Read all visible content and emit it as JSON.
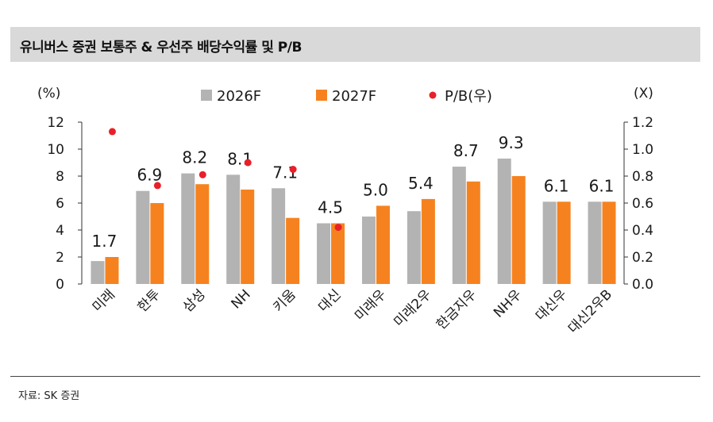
{
  "title": "유니버스 증권 보통주 & 우선주 배당수익률 및 P/B",
  "source": "자료: SK 증권",
  "colors": {
    "series_2026": "#b3b3b3",
    "series_2027": "#f6821f",
    "pb": "#e8202a"
  },
  "chart_data": {
    "type": "bar",
    "categories": [
      "미래",
      "한투",
      "삼성",
      "NH",
      "키움",
      "대신",
      "미래우",
      "미래2우",
      "한금지우",
      "NH우",
      "대신우",
      "대신2우B"
    ],
    "series": [
      {
        "name": "2026F",
        "values": [
          1.7,
          6.9,
          8.2,
          8.1,
          7.1,
          4.5,
          5.0,
          5.4,
          8.7,
          9.3,
          6.1,
          6.1
        ]
      },
      {
        "name": "2027F",
        "values": [
          2.0,
          6.0,
          7.4,
          7.0,
          4.9,
          4.5,
          5.8,
          6.3,
          7.6,
          8.0,
          6.1,
          6.1
        ]
      }
    ],
    "pb_series": {
      "name": "P/B(우)",
      "values": [
        1.13,
        0.73,
        0.81,
        0.9,
        0.85,
        0.42,
        null,
        null,
        null,
        null,
        null,
        null
      ]
    },
    "data_labels": [
      "1.7",
      "6.9",
      "8.2",
      "8.1",
      "7.1",
      "4.5",
      "5.0",
      "5.4",
      "8.7",
      "9.3",
      "6.1",
      "6.1"
    ],
    "ylabel_left": "(%)",
    "ylabel_right": "(X)",
    "ylim_left": [
      0,
      12
    ],
    "ylim_right": [
      0,
      1.2
    ],
    "yticks_left": [
      "0",
      "2",
      "4",
      "6",
      "8",
      "10",
      "12"
    ],
    "yticks_right": [
      "0.0",
      "0.2",
      "0.4",
      "0.6",
      "0.8",
      "1.0",
      "1.2"
    ],
    "legend_position": "top-center",
    "grid": false
  }
}
